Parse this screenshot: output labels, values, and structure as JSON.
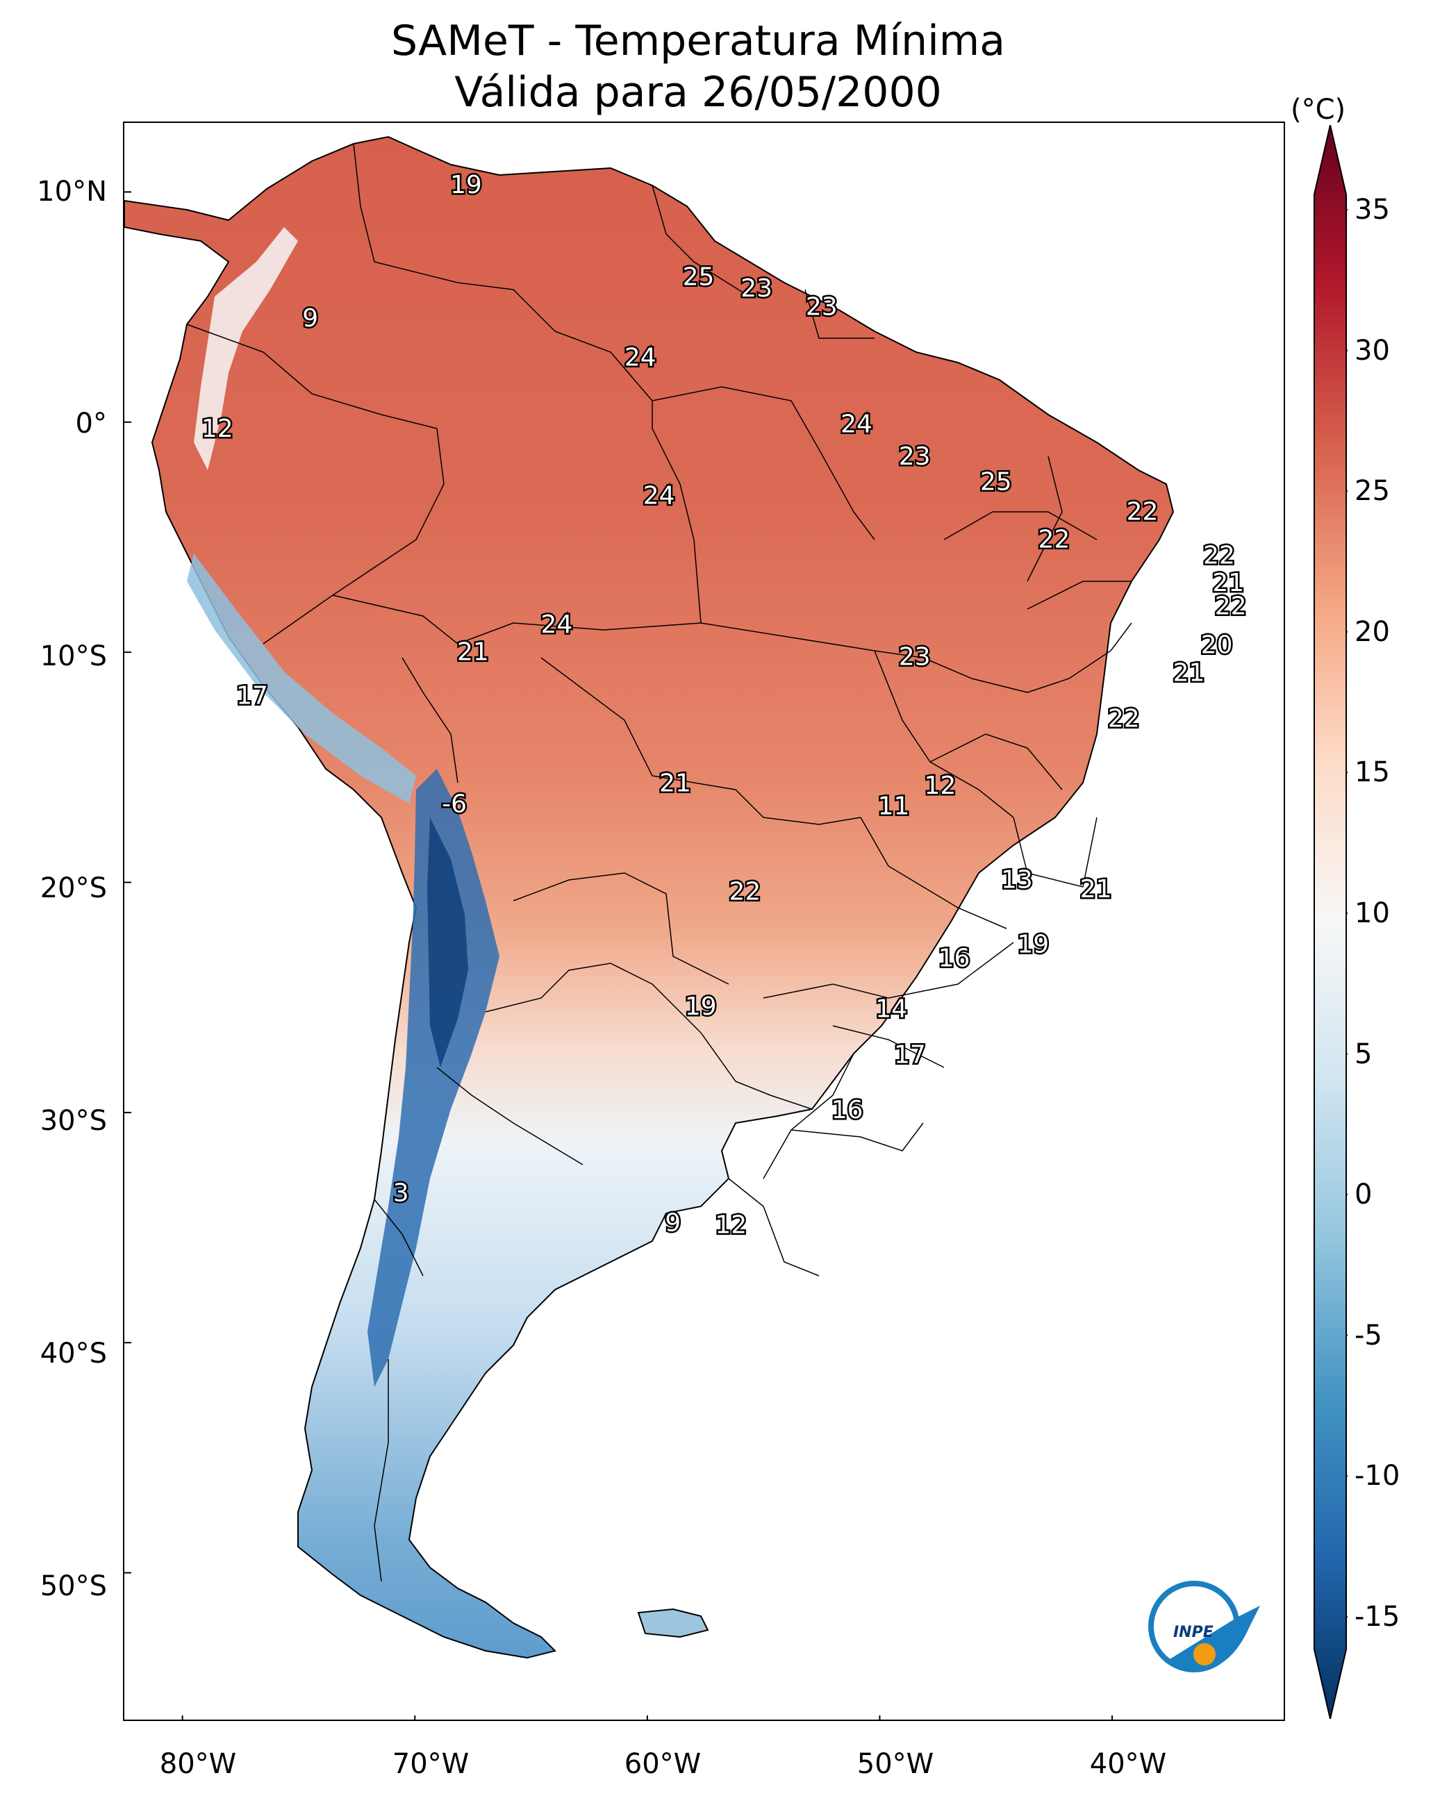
{
  "title": {
    "line1": "SAMeT - Temperatura Mínima",
    "line2": "Válida para 26/05/2000"
  },
  "axes": {
    "lat_ticks": [
      "10°N",
      "0°",
      "10°S",
      "20°S",
      "30°S",
      "40°S",
      "50°S"
    ],
    "lat_values": [
      10,
      0,
      -10,
      -20,
      -30,
      -40,
      -50
    ],
    "lon_ticks": [
      "80°W",
      "70°W",
      "60°W",
      "50°W",
      "40°W"
    ],
    "lon_values": [
      -80,
      -70,
      -60,
      -50,
      -40
    ],
    "lon_range": [
      -82.5,
      -32.5
    ],
    "lat_range": [
      -56.5,
      13
    ]
  },
  "colorbar": {
    "unit": "(°C)",
    "ticks": [
      "35",
      "30",
      "25",
      "20",
      "15",
      "10",
      "5",
      "0",
      "-5",
      "-10",
      "-15"
    ],
    "tick_values": [
      35,
      30,
      25,
      20,
      15,
      10,
      5,
      0,
      -5,
      -10,
      -15
    ],
    "range": [
      -15,
      35
    ],
    "colors": [
      "#053061",
      "#2166ac",
      "#4393c3",
      "#92c5de",
      "#d1e5f0",
      "#f7f7f7",
      "#fddbc7",
      "#f4a582",
      "#d6604d",
      "#b2182b",
      "#67001f"
    ]
  },
  "logo": {
    "text": "INPE",
    "ring_color": "#1a7fc1",
    "dot_color": "#f39c12"
  },
  "labels": [
    {
      "value": "19",
      "lon": -67.8,
      "lat": 10.3
    },
    {
      "value": "9",
      "lon": -74.5,
      "lat": 4.5
    },
    {
      "value": "25",
      "lon": -57.8,
      "lat": 6.3
    },
    {
      "value": "23",
      "lon": -55.3,
      "lat": 5.8
    },
    {
      "value": "23",
      "lon": -52.5,
      "lat": 5.0
    },
    {
      "value": "24",
      "lon": -60.3,
      "lat": 2.8
    },
    {
      "value": "12",
      "lon": -78.5,
      "lat": -0.3
    },
    {
      "value": "24",
      "lon": -51.0,
      "lat": -0.1
    },
    {
      "value": "23",
      "lon": -48.5,
      "lat": -1.5
    },
    {
      "value": "25",
      "lon": -45.0,
      "lat": -2.6
    },
    {
      "value": "24",
      "lon": -59.5,
      "lat": -3.2
    },
    {
      "value": "22",
      "lon": -38.7,
      "lat": -3.9
    },
    {
      "value": "22",
      "lon": -42.5,
      "lat": -5.1
    },
    {
      "value": "22",
      "lon": -35.4,
      "lat": -5.8
    },
    {
      "value": "21",
      "lon": -35.0,
      "lat": -7.0
    },
    {
      "value": "22",
      "lon": -34.9,
      "lat": -8.0
    },
    {
      "value": "24",
      "lon": -63.9,
      "lat": -8.8
    },
    {
      "value": "21",
      "lon": -67.5,
      "lat": -10.0
    },
    {
      "value": "23",
      "lon": -48.5,
      "lat": -10.2
    },
    {
      "value": "20",
      "lon": -35.5,
      "lat": -9.7
    },
    {
      "value": "21",
      "lon": -36.7,
      "lat": -10.9
    },
    {
      "value": "17",
      "lon": -77.0,
      "lat": -11.9
    },
    {
      "value": "22",
      "lon": -39.5,
      "lat": -12.9
    },
    {
      "value": "21",
      "lon": -58.8,
      "lat": -15.7
    },
    {
      "value": "12",
      "lon": -47.4,
      "lat": -15.8
    },
    {
      "value": "11",
      "lon": -49.4,
      "lat": -16.7
    },
    {
      "value": "-6",
      "lon": -68.3,
      "lat": -16.6
    },
    {
      "value": "13",
      "lon": -44.1,
      "lat": -19.9
    },
    {
      "value": "22",
      "lon": -55.8,
      "lat": -20.4
    },
    {
      "value": "21",
      "lon": -40.7,
      "lat": -20.3
    },
    {
      "value": "19",
      "lon": -43.4,
      "lat": -22.7
    },
    {
      "value": "16",
      "lon": -46.8,
      "lat": -23.3
    },
    {
      "value": "19",
      "lon": -57.7,
      "lat": -25.4
    },
    {
      "value": "14",
      "lon": -49.5,
      "lat": -25.5
    },
    {
      "value": "17",
      "lon": -48.7,
      "lat": -27.5
    },
    {
      "value": "16",
      "lon": -51.4,
      "lat": -29.9
    },
    {
      "value": "3",
      "lon": -70.6,
      "lat": -33.5
    },
    {
      "value": "9",
      "lon": -58.9,
      "lat": -34.8
    },
    {
      "value": "12",
      "lon": -56.4,
      "lat": -34.9
    }
  ]
}
